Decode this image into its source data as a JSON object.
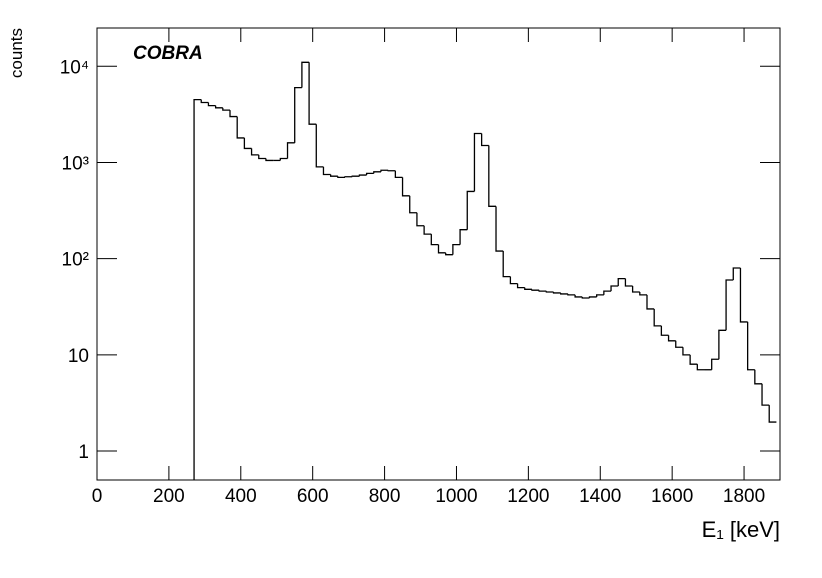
{
  "chart_data": {
    "type": "histogram",
    "annotation": "COBRA",
    "xlabel": "E₁ [keV]",
    "ylabel": "counts",
    "color": "#000000",
    "log_y": true,
    "xlim": [
      0,
      1900
    ],
    "ylim": [
      0.5,
      25000
    ],
    "xticks": [
      0,
      200,
      400,
      600,
      800,
      1000,
      1200,
      1400,
      1600,
      1800
    ],
    "yticks": [
      1,
      10,
      {
        "value": 100,
        "label": "10²"
      },
      {
        "value": 1000,
        "label": "10³"
      },
      {
        "value": 10000,
        "label": "10⁴"
      }
    ],
    "bins": [
      270,
      290,
      310,
      330,
      350,
      370,
      390,
      410,
      430,
      450,
      470,
      490,
      510,
      530,
      550,
      570,
      590,
      610,
      630,
      650,
      670,
      690,
      710,
      730,
      750,
      770,
      790,
      810,
      830,
      850,
      870,
      890,
      910,
      930,
      950,
      970,
      990,
      1010,
      1030,
      1050,
      1070,
      1090,
      1110,
      1130,
      1150,
      1170,
      1190,
      1210,
      1230,
      1250,
      1270,
      1290,
      1310,
      1330,
      1350,
      1370,
      1390,
      1410,
      1430,
      1450,
      1470,
      1490,
      1510,
      1530,
      1550,
      1570,
      1590,
      1610,
      1630,
      1650,
      1670,
      1690,
      1710,
      1730,
      1750,
      1770,
      1790,
      1810,
      1830,
      1850,
      1870,
      1890
    ],
    "values": [
      4500,
      4200,
      3900,
      3700,
      3500,
      3000,
      1800,
      1400,
      1200,
      1100,
      1050,
      1050,
      1100,
      1600,
      6000,
      11000,
      2500,
      900,
      750,
      720,
      700,
      710,
      720,
      740,
      770,
      800,
      830,
      820,
      700,
      450,
      300,
      220,
      180,
      140,
      115,
      110,
      140,
      200,
      500,
      2000,
      1500,
      350,
      120,
      65,
      55,
      50,
      48,
      47,
      46,
      45,
      44,
      43,
      42,
      40,
      39,
      40,
      42,
      46,
      52,
      62,
      52,
      45,
      42,
      30,
      20,
      16,
      14,
      12,
      10,
      8,
      7,
      7,
      9,
      18,
      60,
      80,
      22,
      7,
      5,
      3,
      2
    ]
  }
}
